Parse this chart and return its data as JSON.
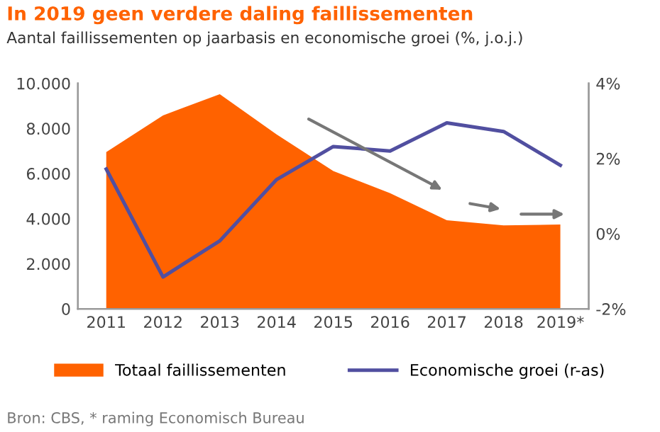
{
  "chart_data": {
    "type": "area",
    "title": "In 2019 geen verdere daling faillissementen",
    "subtitle": "Aantal faillissementen op jaarbasis en economische groei (%, j.o.j.)",
    "categories": [
      "2011",
      "2012",
      "2013",
      "2014",
      "2015",
      "2016",
      "2017",
      "2018",
      "2019*"
    ],
    "series": [
      {
        "name": "Totaal faillissementen",
        "color": "#ff6200",
        "values": [
          6950,
          8580,
          9520,
          7740,
          6110,
          5130,
          3930,
          3700,
          3740
        ]
      },
      {
        "name": "Economische groei (r-as)",
        "type": "line",
        "color": "#514fa0",
        "axis": "y2",
        "values": [
          1.72,
          -1.15,
          -0.19,
          1.44,
          2.32,
          2.2,
          2.95,
          2.72,
          1.82
        ]
      }
    ],
    "ylim": [
      0,
      10000
    ],
    "yticks": [
      {
        "value": 0,
        "label": "0"
      },
      {
        "value": 2000,
        "label": "2.000"
      },
      {
        "value": 4000,
        "label": "4.000"
      },
      {
        "value": 6000,
        "label": "6.000"
      },
      {
        "value": 8000,
        "label": "8.000"
      },
      {
        "value": 10000,
        "label": "10.000"
      }
    ],
    "y2lim": [
      -2,
      4
    ],
    "y2ticks": [
      {
        "value": -2,
        "label": "-2%"
      },
      {
        "value": 0,
        "label": "0%"
      },
      {
        "value": 2,
        "label": "2%"
      },
      {
        "value": 4,
        "label": "4%"
      }
    ],
    "grid": false,
    "legend": "bottom",
    "annotations": [
      "Bron: CBS, * raming Economisch Bureau"
    ]
  }
}
